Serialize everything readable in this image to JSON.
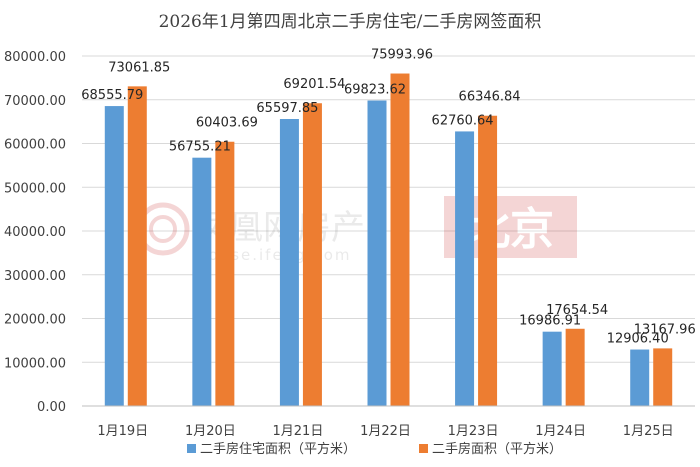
{
  "chart_data": {
    "type": "bar",
    "title": "2026年1月第四周北京二手房住宅/二手房网签面积",
    "categories": [
      "1月19日",
      "1月20日",
      "1月21日",
      "1月22日",
      "1月23日",
      "1月24日",
      "1月25日"
    ],
    "series": [
      {
        "name": "二手房住宅面积（平方米）",
        "color": "#5b9bd5",
        "values": [
          68555.79,
          56755.21,
          65597.85,
          69823.62,
          62760.64,
          16986.91,
          12906.4
        ],
        "labels": [
          "68555.79",
          "56755.21",
          "65597.85",
          "69823.62",
          "62760.64",
          "16986.91",
          "12906.40"
        ]
      },
      {
        "name": "二手房面积（平方米）",
        "color": "#ed7d31",
        "values": [
          73061.85,
          60403.69,
          69201.54,
          75993.96,
          66346.84,
          17654.54,
          13167.96
        ],
        "labels": [
          "73061.85",
          "60403.69",
          "69201.54",
          "75993.96",
          "66346.84",
          "17654.54",
          "13167.96"
        ]
      }
    ],
    "ylim": [
      0,
      80000
    ],
    "yticks": [
      "0.00",
      "10000.00",
      "20000.00",
      "30000.00",
      "40000.00",
      "50000.00",
      "60000.00",
      "70000.00",
      "80000.00"
    ],
    "grid": true,
    "legend": "bottom"
  },
  "watermark": {
    "brand": "凤凰网房产",
    "site": "house.ifeng.com",
    "city": "北京"
  }
}
